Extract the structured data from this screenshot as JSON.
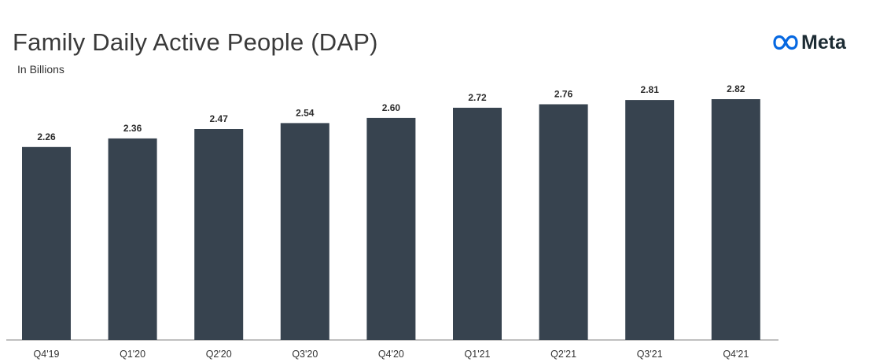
{
  "header": {
    "title": "Family Daily Active People (DAP)",
    "subtitle": "In Billions",
    "brand": "Meta"
  },
  "colors": {
    "bar": "#37434f",
    "axis": "#9a9a9a",
    "logo": "#0668e1"
  },
  "chart_data": {
    "type": "bar",
    "title": "Family Daily Active People (DAP)",
    "subtitle": "In Billions",
    "xlabel": "",
    "ylabel": "",
    "categories": [
      "Q4'19",
      "Q1'20",
      "Q2'20",
      "Q3'20",
      "Q4'20",
      "Q1'21",
      "Q2'21",
      "Q3'21",
      "Q4'21"
    ],
    "values": [
      2.26,
      2.36,
      2.47,
      2.54,
      2.6,
      2.72,
      2.76,
      2.81,
      2.82
    ],
    "value_labels": [
      "2.26",
      "2.36",
      "2.47",
      "2.54",
      "2.60",
      "2.72",
      "2.76",
      "2.81",
      "2.82"
    ],
    "ylim": [
      0,
      2.82
    ],
    "grid": false,
    "legend": "none"
  }
}
